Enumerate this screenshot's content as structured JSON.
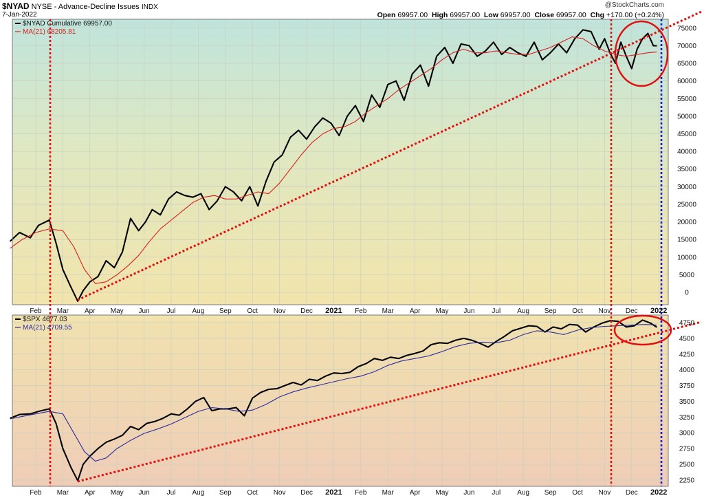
{
  "header": {
    "symbol": "$NYAD",
    "description": "NYSE - Advance-Decline Issues",
    "suffix": "INDX",
    "date": "7-Jan-2022",
    "brand": "@StockCharts.com",
    "open_label": "Open",
    "open_value": "69957.00",
    "high_label": "High",
    "high_value": "69957.00",
    "low_label": "Low",
    "low_value": "69957.00",
    "close_label": "Close",
    "close_value": "69957.00",
    "chg_label": "Chg",
    "chg_value": "+170.00 (+0.24%)"
  },
  "colors": {
    "price_line": "#000000",
    "ma_line_top": "#d42020",
    "ma_line_bottom": "#2c2c9c",
    "trend_red": "#e01010",
    "marker_blue": "#1a1acc",
    "circle": "#e01010"
  },
  "x_axis": {
    "labels": [
      "Feb",
      "Mar",
      "Apr",
      "May",
      "Jun",
      "Jul",
      "Aug",
      "Sep",
      "Oct",
      "Nov",
      "Dec",
      "2021",
      "Feb",
      "Mar",
      "Apr",
      "May",
      "Jun",
      "Jul",
      "Aug",
      "Sep",
      "Oct",
      "Nov",
      "Dec",
      "2022"
    ],
    "months_index": [
      1,
      2,
      3,
      4,
      5,
      6,
      7,
      8,
      9,
      10,
      11,
      12,
      13,
      14,
      15,
      16,
      17,
      18,
      19,
      20,
      21,
      22,
      23,
      24
    ],
    "bold": [
      "2021",
      "2022"
    ]
  },
  "chart_data": [
    {
      "type": "line",
      "legend": [
        {
          "label": "$NYAD Cumulative 69957.00",
          "color": "#000000"
        },
        {
          "label": "MA(21) 68205.81",
          "color": "#d42020"
        }
      ],
      "y_ticks": [
        0,
        5000,
        10000,
        15000,
        20000,
        25000,
        30000,
        35000,
        40000,
        45000,
        50000,
        55000,
        60000,
        65000,
        70000,
        75000
      ],
      "ylim": [
        -3500,
        77500
      ],
      "x_unit": "months since Jan 2020",
      "series": [
        {
          "name": "$NYAD Cumulative",
          "x": [
            0.05,
            0.4,
            0.8,
            1.1,
            1.5,
            1.75,
            2.0,
            2.3,
            2.55,
            2.75,
            3.0,
            3.3,
            3.6,
            3.9,
            4.2,
            4.5,
            4.8,
            5.05,
            5.3,
            5.6,
            5.9,
            6.2,
            6.5,
            6.8,
            7.1,
            7.4,
            7.7,
            8.0,
            8.3,
            8.6,
            8.9,
            9.2,
            9.5,
            9.8,
            10.1,
            10.4,
            10.7,
            11.0,
            11.3,
            11.6,
            11.9,
            12.2,
            12.5,
            12.8,
            13.1,
            13.4,
            13.7,
            14.0,
            14.3,
            14.6,
            14.9,
            15.2,
            15.5,
            15.8,
            16.1,
            16.4,
            16.7,
            17.0,
            17.3,
            17.6,
            17.9,
            18.2,
            18.5,
            18.8,
            19.1,
            19.4,
            19.7,
            20.0,
            20.3,
            20.6,
            20.9,
            21.2,
            21.5,
            21.8,
            22.0,
            22.2,
            22.4,
            22.6,
            22.8,
            23.0,
            23.2,
            23.4,
            23.6,
            23.8,
            23.93
          ],
          "values": [
            14500,
            17000,
            15500,
            19000,
            20500,
            14000,
            6500,
            1500,
            -2500,
            500,
            3000,
            4500,
            9000,
            7000,
            11500,
            21000,
            17500,
            20000,
            23500,
            22000,
            26500,
            28500,
            27500,
            27000,
            28000,
            23500,
            26000,
            30000,
            28500,
            26000,
            30000,
            24500,
            31500,
            37000,
            39000,
            44000,
            46000,
            43500,
            47000,
            49500,
            48000,
            44500,
            50000,
            53000,
            48500,
            56000,
            52500,
            59000,
            60000,
            54500,
            62000,
            64500,
            58500,
            67000,
            69500,
            65000,
            70500,
            70000,
            67000,
            68500,
            71000,
            67500,
            69500,
            68000,
            67000,
            71000,
            66000,
            68000,
            70500,
            68000,
            72000,
            74500,
            74000,
            69000,
            72000,
            68000,
            65000,
            71000,
            67000,
            63500,
            69000,
            72000,
            73500,
            70000,
            69957
          ]
        },
        {
          "name": "MA(21)",
          "x": [
            0.05,
            0.5,
            1.0,
            1.5,
            2.0,
            2.4,
            2.8,
            3.2,
            3.6,
            4.0,
            4.4,
            4.8,
            5.2,
            5.6,
            6.0,
            6.4,
            6.8,
            7.2,
            7.6,
            8.0,
            8.4,
            8.8,
            9.2,
            9.6,
            10.0,
            10.4,
            10.8,
            11.2,
            11.6,
            12.0,
            12.4,
            12.8,
            13.2,
            13.6,
            14.0,
            14.4,
            14.8,
            15.2,
            15.6,
            16.0,
            16.4,
            16.8,
            17.2,
            17.6,
            18.0,
            18.4,
            18.8,
            19.2,
            19.6,
            20.0,
            20.4,
            20.8,
            21.2,
            21.6,
            22.0,
            22.4,
            22.8,
            23.2,
            23.6,
            23.93
          ],
          "values": [
            12500,
            15000,
            17000,
            18000,
            17500,
            13000,
            6500,
            2500,
            3000,
            5000,
            7500,
            10500,
            14500,
            18000,
            20500,
            23000,
            25500,
            27000,
            27500,
            26500,
            26500,
            27500,
            28500,
            28000,
            31000,
            35000,
            39000,
            42500,
            45000,
            46500,
            47000,
            48500,
            51000,
            53000,
            55000,
            57500,
            59500,
            61500,
            63500,
            66000,
            68000,
            69000,
            68000,
            68000,
            68500,
            68000,
            67500,
            67500,
            68500,
            69500,
            71000,
            72500,
            72000,
            70000,
            68500,
            67500,
            67000,
            67500,
            68000,
            68206
          ]
        }
      ]
    },
    {
      "type": "line",
      "legend": [
        {
          "label": "$SPX 4677.03",
          "color": "#000000"
        },
        {
          "label": "MA(21) 4709.55",
          "color": "#2c2c9c"
        }
      ],
      "y_ticks": [
        2250,
        2500,
        2750,
        3000,
        3250,
        3500,
        3750,
        4000,
        4250,
        4500,
        4750
      ],
      "ylim": [
        2150,
        4870
      ],
      "x_unit": "months since Jan 2020",
      "series": [
        {
          "name": "$SPX",
          "x": [
            0.05,
            0.4,
            0.8,
            1.1,
            1.5,
            1.75,
            2.0,
            2.3,
            2.55,
            2.75,
            3.0,
            3.3,
            3.6,
            3.9,
            4.2,
            4.5,
            4.8,
            5.1,
            5.4,
            5.7,
            6.0,
            6.3,
            6.6,
            6.9,
            7.2,
            7.5,
            7.8,
            8.1,
            8.4,
            8.7,
            9.0,
            9.3,
            9.6,
            9.9,
            10.2,
            10.5,
            10.8,
            11.1,
            11.4,
            11.7,
            12.0,
            12.3,
            12.6,
            12.9,
            13.2,
            13.5,
            13.8,
            14.1,
            14.4,
            14.7,
            15.0,
            15.3,
            15.6,
            15.9,
            16.2,
            16.5,
            16.8,
            17.1,
            17.4,
            17.7,
            18.0,
            18.3,
            18.6,
            18.9,
            19.2,
            19.5,
            19.8,
            20.1,
            20.4,
            20.7,
            21.0,
            21.3,
            21.6,
            21.9,
            22.2,
            22.5,
            22.8,
            23.1,
            23.4,
            23.7,
            23.93
          ],
          "values": [
            3230,
            3290,
            3300,
            3340,
            3380,
            3150,
            2750,
            2450,
            2240,
            2500,
            2630,
            2750,
            2850,
            2900,
            2960,
            3100,
            3050,
            3150,
            3180,
            3230,
            3300,
            3280,
            3380,
            3500,
            3560,
            3350,
            3380,
            3380,
            3400,
            3270,
            3550,
            3640,
            3690,
            3700,
            3750,
            3800,
            3760,
            3850,
            3830,
            3900,
            3950,
            3940,
            3960,
            4050,
            4100,
            4180,
            4150,
            4200,
            4180,
            4230,
            4260,
            4300,
            4400,
            4430,
            4420,
            4470,
            4500,
            4470,
            4420,
            4360,
            4450,
            4530,
            4620,
            4660,
            4700,
            4690,
            4600,
            4680,
            4650,
            4720,
            4710,
            4600,
            4680,
            4740,
            4780,
            4770,
            4680,
            4700,
            4790,
            4740,
            4677
          ]
        },
        {
          "name": "MA(21)",
          "x": [
            0.05,
            0.5,
            1.0,
            1.5,
            2.0,
            2.4,
            2.8,
            3.2,
            3.6,
            4.0,
            4.5,
            5.0,
            5.5,
            6.0,
            6.5,
            7.0,
            7.5,
            8.0,
            8.5,
            9.0,
            9.5,
            10.0,
            10.5,
            11.0,
            11.5,
            12.0,
            12.5,
            13.0,
            13.5,
            14.0,
            14.5,
            15.0,
            15.5,
            16.0,
            16.5,
            17.0,
            17.5,
            18.0,
            18.5,
            19.0,
            19.5,
            20.0,
            20.5,
            21.0,
            21.5,
            22.0,
            22.5,
            23.0,
            23.5,
            23.93
          ],
          "values": [
            3220,
            3260,
            3300,
            3340,
            3300,
            3000,
            2700,
            2550,
            2600,
            2750,
            2880,
            2990,
            3060,
            3140,
            3240,
            3340,
            3400,
            3380,
            3340,
            3360,
            3450,
            3570,
            3650,
            3710,
            3760,
            3810,
            3860,
            3900,
            3970,
            4070,
            4140,
            4180,
            4220,
            4290,
            4370,
            4420,
            4440,
            4430,
            4470,
            4560,
            4620,
            4600,
            4560,
            4630,
            4670,
            4690,
            4700,
            4710,
            4720,
            4710
          ]
        }
      ]
    }
  ]
}
